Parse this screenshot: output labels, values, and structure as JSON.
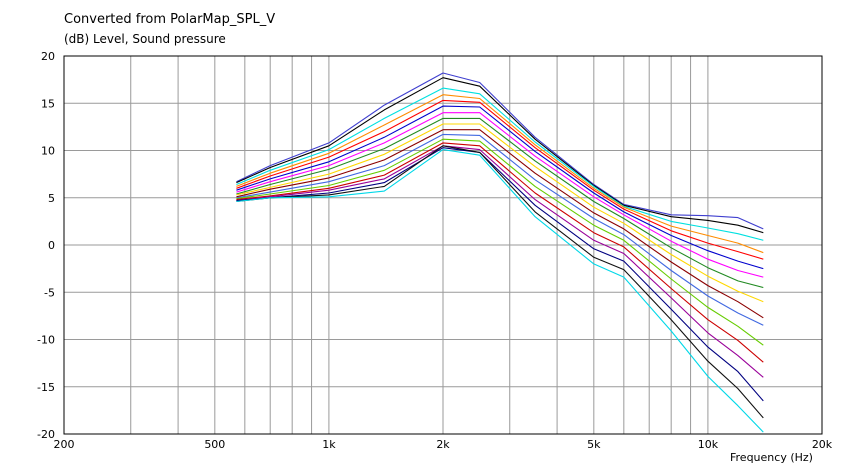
{
  "title": "Converted from PolarMap_SPL_V",
  "subtitle": "(dB)  Level, Sound pressure",
  "x_unit_label": "Frequency  (Hz)",
  "chart_data": {
    "type": "line",
    "title": "Converted from PolarMap_SPL_V",
    "ylabel": "(dB)  Level, Sound pressure",
    "xlabel": "Frequency  (Hz)",
    "xscale": "log",
    "xlim": [
      200,
      20000
    ],
    "ylim": [
      -20,
      20
    ],
    "grid": true,
    "x_ticks": [
      {
        "value": 200,
        "label": "200"
      },
      {
        "value": 500,
        "label": "500"
      },
      {
        "value": 1000,
        "label": "1k"
      },
      {
        "value": 2000,
        "label": "2k"
      },
      {
        "value": 5000,
        "label": "5k"
      },
      {
        "value": 10000,
        "label": "10k"
      },
      {
        "value": 20000,
        "label": "20k"
      }
    ],
    "y_ticks": [
      20,
      15,
      10,
      5,
      0,
      -5,
      -10,
      -15,
      -20
    ],
    "x": [
      570,
      700,
      1000,
      1400,
      2000,
      2500,
      3500,
      5000,
      6000,
      8000,
      10000,
      12000,
      14000
    ],
    "series": [
      {
        "color": "#3f3fcf",
        "values": [
          6.7,
          8.4,
          10.8,
          14.8,
          18.2,
          17.2,
          11.4,
          6.4,
          4.3,
          3.2,
          3.1,
          2.9,
          1.7
        ]
      },
      {
        "color": "#000000",
        "values": [
          6.6,
          8.2,
          10.5,
          14.3,
          17.7,
          16.8,
          11.2,
          6.3,
          4.2,
          3.0,
          2.6,
          2.1,
          1.3
        ]
      },
      {
        "color": "#00e0e0",
        "values": [
          6.4,
          7.9,
          10.1,
          13.4,
          16.6,
          16.0,
          10.9,
          6.2,
          4.1,
          2.5,
          1.8,
          1.2,
          0.5
        ]
      },
      {
        "color": "#ff8c00",
        "values": [
          6.2,
          7.6,
          9.7,
          12.7,
          15.9,
          15.5,
          10.6,
          6.0,
          4.0,
          2.0,
          1.0,
          0.2,
          -0.8
        ]
      },
      {
        "color": "#ff0000",
        "values": [
          6.0,
          7.3,
          9.3,
          12.0,
          15.3,
          15.1,
          10.3,
          5.8,
          3.8,
          1.5,
          0.2,
          -0.7,
          -1.5
        ]
      },
      {
        "color": "#0000cd",
        "values": [
          5.8,
          7.0,
          8.8,
          11.4,
          14.7,
          14.6,
          9.9,
          5.5,
          3.5,
          1.0,
          -0.6,
          -1.7,
          -2.5
        ]
      },
      {
        "color": "#ff00ff",
        "values": [
          5.6,
          6.7,
          8.4,
          10.8,
          14.0,
          14.0,
          9.4,
          5.1,
          3.2,
          0.4,
          -1.5,
          -2.7,
          -3.4
        ]
      },
      {
        "color": "#228b22",
        "values": [
          5.4,
          6.4,
          8.0,
          10.2,
          13.4,
          13.4,
          8.9,
          4.6,
          2.8,
          -0.3,
          -2.4,
          -3.8,
          -4.5
        ]
      },
      {
        "color": "#ffd700",
        "values": [
          5.3,
          6.1,
          7.5,
          9.6,
          12.8,
          12.8,
          8.3,
          4.0,
          2.3,
          -1.0,
          -3.3,
          -4.9,
          -6.0
        ]
      },
      {
        "color": "#8b0000",
        "values": [
          5.1,
          5.9,
          7.1,
          9.0,
          12.2,
          12.2,
          7.6,
          3.4,
          1.7,
          -1.8,
          -4.3,
          -6.0,
          -7.7
        ]
      },
      {
        "color": "#4169e1",
        "values": [
          5.0,
          5.6,
          6.7,
          8.4,
          11.7,
          11.6,
          6.9,
          2.8,
          1.1,
          -2.7,
          -5.4,
          -7.2,
          -8.5
        ]
      },
      {
        "color": "#66cc00",
        "values": [
          4.9,
          5.4,
          6.3,
          7.9,
          11.2,
          11.0,
          6.2,
          2.1,
          0.5,
          -3.6,
          -6.6,
          -8.6,
          -10.6
        ]
      },
      {
        "color": "#cc0000",
        "values": [
          4.8,
          5.2,
          6.0,
          7.4,
          10.8,
          10.5,
          5.5,
          1.3,
          -0.2,
          -4.6,
          -7.9,
          -10.1,
          -12.4
        ]
      },
      {
        "color": "#990099",
        "values": [
          4.7,
          5.1,
          5.8,
          7.0,
          10.5,
          10.1,
          4.8,
          0.5,
          -0.9,
          -5.6,
          -9.3,
          -11.7,
          -14.0
        ]
      },
      {
        "color": "#000080",
        "values": [
          4.7,
          5.0,
          5.5,
          6.6,
          10.3,
          9.8,
          4.2,
          -0.4,
          -1.7,
          -6.8,
          -10.8,
          -13.4,
          -16.5
        ]
      },
      {
        "color": "#111111",
        "values": [
          4.6,
          5.0,
          5.3,
          6.2,
          10.5,
          9.8,
          3.5,
          -1.3,
          -2.6,
          -7.9,
          -12.3,
          -15.2,
          -18.3
        ]
      },
      {
        "color": "#00d8e8",
        "values": [
          4.6,
          5.0,
          5.1,
          5.7,
          10.1,
          9.5,
          3.0,
          -2.0,
          -3.4,
          -9.1,
          -13.9,
          -17.0,
          -19.8
        ]
      }
    ]
  }
}
